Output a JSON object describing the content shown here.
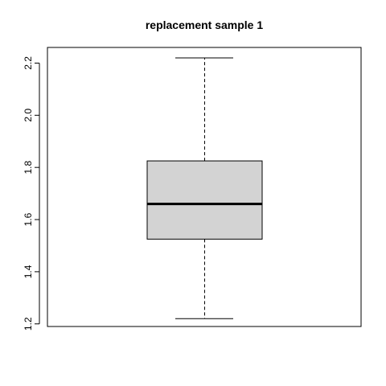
{
  "chart_data": {
    "type": "boxplot",
    "title": "replacement sample 1",
    "xlabel": "",
    "ylabel": "",
    "ylim": [
      1.19,
      2.26
    ],
    "yticks": [
      1.2,
      1.4,
      1.6,
      1.8,
      2.0,
      2.2
    ],
    "ytick_labels": [
      "1.2",
      "1.4",
      "1.6",
      "1.8",
      "2.0",
      "2.2"
    ],
    "box": {
      "min": 1.22,
      "q1": 1.525,
      "median": 1.66,
      "q3": 1.825,
      "max": 2.22
    },
    "box_fill": "#d3d3d3",
    "grid": false,
    "legend": "none"
  }
}
